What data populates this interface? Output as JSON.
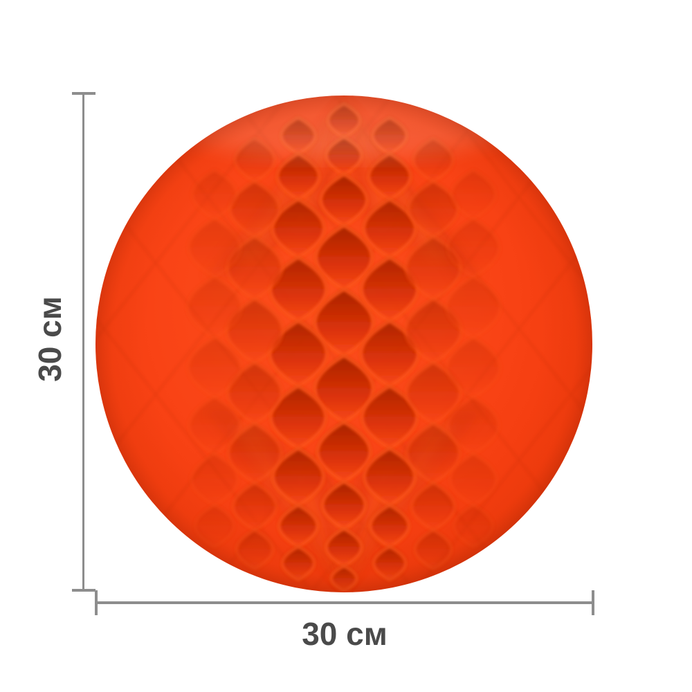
{
  "annotations": {
    "height_label": "30 см",
    "width_label": "30 см"
  },
  "colors": {
    "background": "#ffffff",
    "line_color": "#8d8d8d",
    "label_color": "#4a4a4a",
    "ball_base": "#f94315",
    "ball_ridge": "#ff5c1c",
    "ball_highlight": "#ff7a38",
    "ball_shadow": "#c22a05"
  }
}
